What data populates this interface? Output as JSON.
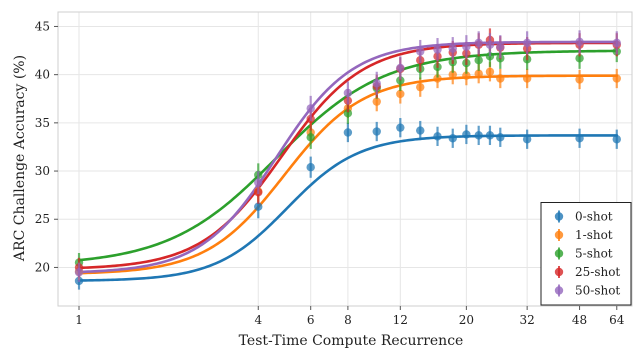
{
  "chart_data": {
    "type": "line",
    "title": "",
    "xlabel": "Test-Time Compute Recurrence",
    "ylabel": "ARC Challenge Accuracy (%)",
    "x_scale": "log",
    "x_ticks": [
      1,
      4,
      6,
      8,
      12,
      20,
      32,
      48,
      64
    ],
    "y_ticks": [
      20,
      25,
      30,
      35,
      40,
      45
    ],
    "xlim": [
      0.85,
      72
    ],
    "ylim": [
      16,
      46.5
    ],
    "grid": true,
    "legend_position": "bottom-right",
    "x": [
      1,
      4,
      6,
      8,
      10,
      12,
      14,
      16,
      18,
      20,
      22,
      24,
      26,
      32,
      48,
      64
    ],
    "series": [
      {
        "name": "0-shot",
        "color": "#1f77b4",
        "values": [
          18.6,
          26.3,
          30.4,
          34.0,
          34.1,
          34.5,
          34.2,
          33.6,
          33.4,
          33.8,
          33.7,
          33.7,
          33.5,
          33.3,
          33.4,
          33.3
        ],
        "err": [
          0.9,
          1.2,
          1.1,
          1.0,
          1.0,
          1.0,
          1.0,
          1.0,
          1.0,
          1.0,
          1.0,
          1.0,
          1.0,
          1.0,
          1.0,
          1.0
        ],
        "fit": {
          "base": 18.6,
          "top": 33.7,
          "mid": 5.0,
          "k": 3.6
        }
      },
      {
        "name": "1-shot",
        "color": "#ff7f0e",
        "values": [
          19.6,
          27.9,
          34.0,
          36.5,
          37.2,
          38.0,
          38.7,
          39.6,
          40.0,
          39.9,
          40.1,
          40.3,
          39.6,
          39.6,
          39.5,
          39.6
        ],
        "err": [
          0.9,
          1.1,
          1.1,
          1.0,
          1.0,
          1.0,
          1.0,
          1.0,
          1.0,
          1.0,
          1.0,
          1.0,
          1.0,
          1.0,
          1.0,
          1.0
        ],
        "fit": {
          "base": 19.3,
          "top": 39.9,
          "mid": 4.9,
          "k": 3.3
        }
      },
      {
        "name": "5-shot",
        "color": "#2ca02c",
        "values": [
          20.5,
          29.6,
          33.5,
          36.0,
          38.6,
          39.4,
          40.6,
          40.8,
          41.3,
          41.2,
          41.5,
          41.9,
          41.7,
          41.6,
          41.7,
          42.4
        ],
        "err": [
          1.0,
          1.2,
          1.2,
          1.1,
          1.1,
          1.1,
          1.1,
          1.1,
          1.1,
          1.1,
          1.1,
          1.1,
          1.1,
          1.1,
          1.1,
          1.1
        ],
        "fit": {
          "base": 20.2,
          "top": 42.5,
          "mid": 4.6,
          "k": 2.4
        }
      },
      {
        "name": "25-shot",
        "color": "#d62728",
        "values": [
          20.0,
          27.8,
          35.4,
          37.3,
          38.8,
          40.6,
          41.5,
          41.9,
          42.3,
          42.2,
          43.1,
          43.6,
          42.8,
          42.7,
          43.1,
          43.1
        ],
        "err": [
          1.0,
          1.2,
          1.2,
          1.2,
          1.2,
          1.2,
          1.2,
          1.2,
          1.2,
          1.2,
          1.2,
          1.2,
          1.2,
          1.2,
          1.2,
          1.2
        ],
        "fit": {
          "base": 19.8,
          "top": 43.3,
          "mid": 4.8,
          "k": 3.2
        }
      },
      {
        "name": "50-shot",
        "color": "#9467bd",
        "values": [
          19.5,
          28.8,
          36.5,
          38.1,
          39.1,
          40.7,
          42.4,
          42.6,
          42.7,
          42.9,
          43.3,
          43.1,
          42.9,
          43.3,
          43.4,
          43.3
        ],
        "err": [
          1.0,
          1.2,
          1.3,
          1.2,
          1.2,
          1.2,
          1.2,
          1.2,
          1.2,
          1.2,
          1.2,
          1.2,
          1.2,
          1.2,
          1.2,
          1.2
        ],
        "fit": {
          "base": 19.4,
          "top": 43.4,
          "mid": 4.6,
          "k": 3.4
        }
      }
    ]
  }
}
